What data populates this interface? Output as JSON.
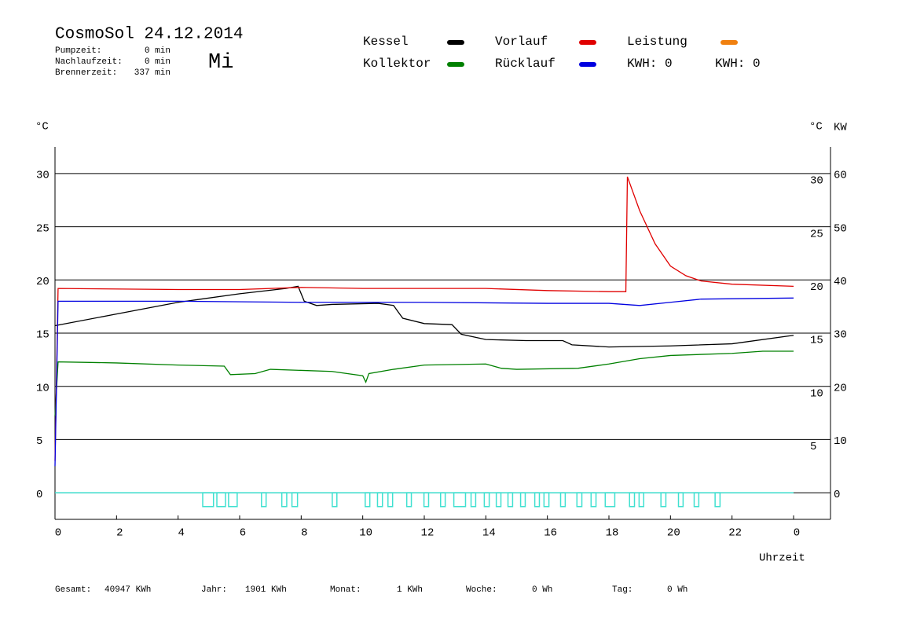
{
  "chart_data": {
    "type": "line",
    "title": "CosmoSol 24.12.2014",
    "weekday": "Mi",
    "stats": [
      {
        "label": "Pumpzeit:",
        "value": "0 min"
      },
      {
        "label": "Nachlaufzeit:",
        "value": "0 min"
      },
      {
        "label": "Brennerzeit:",
        "value": "337 min"
      }
    ],
    "y_unit": "°C",
    "y2_unit": "KW",
    "x_label": "Uhrzeit",
    "xlim": [
      0,
      25.2
    ],
    "xticks": [
      0,
      2,
      4,
      6,
      8,
      10,
      12,
      14,
      16,
      18,
      20,
      22,
      {
        "value": 24,
        "label": "0"
      }
    ],
    "ylim": [
      -2.5,
      32.5
    ],
    "yticks": [
      0,
      5,
      10,
      15,
      20,
      25,
      30
    ],
    "y2lim": [
      -5,
      65
    ],
    "y2ticks": [
      0,
      10,
      20,
      30,
      40,
      50,
      60
    ],
    "series": [
      {
        "name": "Kessel",
        "color": "#000000",
        "x": [
          0,
          2,
          4,
          6,
          7.5,
          7.9,
          8.1,
          8.5,
          9,
          10.5,
          11,
          11.3,
          12,
          12.9,
          13.2,
          14,
          15.3,
          16.5,
          16.8,
          18,
          20,
          22,
          24
        ],
        "values": [
          15.7,
          16.8,
          17.9,
          18.7,
          19.2,
          19.4,
          18.0,
          17.6,
          17.7,
          17.8,
          17.6,
          16.4,
          15.9,
          15.8,
          14.9,
          14.4,
          14.3,
          14.3,
          13.9,
          13.7,
          13.8,
          14.0,
          14.8
        ]
      },
      {
        "name": "Kollektor",
        "color": "#008000",
        "x": [
          0,
          0.1,
          2,
          4,
          5.5,
          5.7,
          6.5,
          7,
          9,
          10,
          10.1,
          10.2,
          11,
          12,
          14,
          14.5,
          15,
          17,
          18,
          19,
          20,
          21,
          22,
          23,
          24
        ],
        "values": [
          7.2,
          12.3,
          12.2,
          12.0,
          11.9,
          11.1,
          11.2,
          11.6,
          11.4,
          11.0,
          10.4,
          11.2,
          11.6,
          12.0,
          12.1,
          11.7,
          11.6,
          11.7,
          12.1,
          12.6,
          12.9,
          13.0,
          13.1,
          13.3,
          13.3
        ]
      },
      {
        "name": "Vorlauf",
        "color": "#e00000",
        "x": [
          0,
          0.1,
          4,
          6,
          8,
          10,
          12,
          14,
          16,
          18,
          18.55,
          18.6,
          19,
          19.5,
          20,
          20.5,
          21,
          22,
          24
        ],
        "values": [
          3,
          19.2,
          19.1,
          19.1,
          19.3,
          19.2,
          19.2,
          19.2,
          19.0,
          18.9,
          18.9,
          29.7,
          26.5,
          23.4,
          21.3,
          20.4,
          19.9,
          19.6,
          19.4
        ]
      },
      {
        "name": "Rücklauf",
        "color": "#0000e0",
        "x": [
          0,
          0.1,
          4,
          8,
          12,
          16,
          18,
          19,
          20,
          21,
          24
        ],
        "values": [
          2.5,
          18.0,
          18.0,
          17.9,
          17.9,
          17.8,
          17.8,
          17.6,
          17.9,
          18.2,
          18.3
        ]
      },
      {
        "name": "Leistung",
        "color": "#f08010",
        "x": [],
        "values": []
      }
    ],
    "pump_pulses": {
      "color": "#40e0d0",
      "depth": -1.3,
      "intervals": [
        [
          4.8,
          5.15
        ],
        [
          5.26,
          5.54
        ],
        [
          5.64,
          5.92
        ],
        [
          6.71,
          6.86
        ],
        [
          7.37,
          7.53
        ],
        [
          7.7,
          7.88
        ],
        [
          9.01,
          9.16
        ],
        [
          10.08,
          10.23
        ],
        [
          10.48,
          10.64
        ],
        [
          10.82,
          10.97
        ],
        [
          11.43,
          11.58
        ],
        [
          11.99,
          12.14
        ],
        [
          12.53,
          12.68
        ],
        [
          12.96,
          13.34
        ],
        [
          13.52,
          13.67
        ],
        [
          13.95,
          14.11
        ],
        [
          14.34,
          14.49
        ],
        [
          14.72,
          14.87
        ],
        [
          15.13,
          15.28
        ],
        [
          15.59,
          15.74
        ],
        [
          15.89,
          16.05
        ],
        [
          16.43,
          16.58
        ],
        [
          16.96,
          17.12
        ],
        [
          17.42,
          17.58
        ],
        [
          17.88,
          18.19
        ],
        [
          18.67,
          18.83
        ],
        [
          18.98,
          19.13
        ],
        [
          19.69,
          19.85
        ],
        [
          20.26,
          20.41
        ],
        [
          20.77,
          20.92
        ],
        [
          21.45,
          21.61
        ]
      ]
    },
    "kwh_labels": [
      {
        "text": "KWH: 0",
        "color": "#e08a1e"
      },
      {
        "text": "KWH: 0",
        "color": "#8a2a9a"
      }
    ],
    "footer": [
      {
        "label": "Gesamt:",
        "value": "40947 KWh"
      },
      {
        "label": "Jahr:",
        "value": "1901 KWh"
      },
      {
        "label": "Monat:",
        "value": "1 KWh"
      },
      {
        "label": "Woche:",
        "value": "0 Wh"
      },
      {
        "label": "Tag:",
        "value": "0 Wh"
      }
    ]
  }
}
